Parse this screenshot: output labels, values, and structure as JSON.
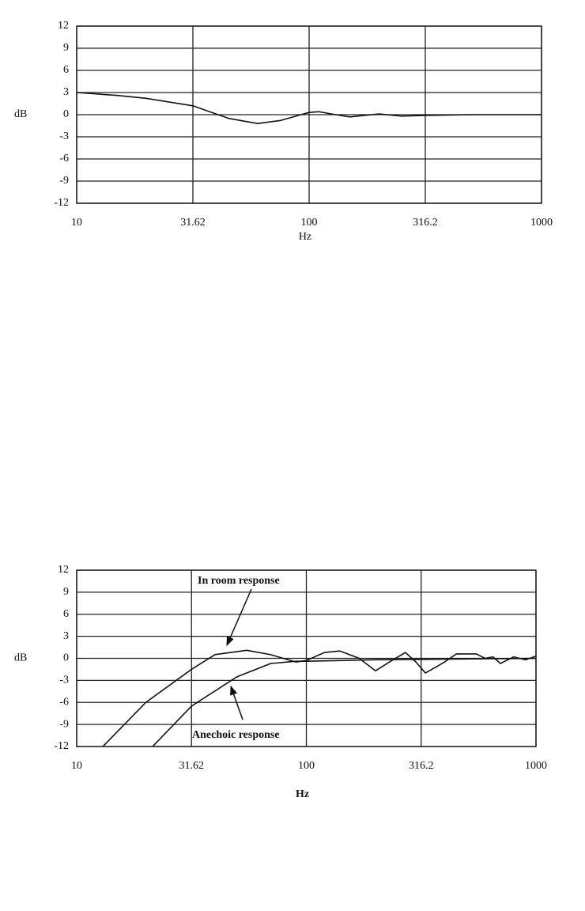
{
  "chart_data": [
    {
      "type": "line",
      "xscale": "log",
      "xlabel": "Hz",
      "ylabel": "dB",
      "xlim": [
        10,
        1000
      ],
      "xticks": [
        10,
        31.62,
        100,
        316.2,
        1000
      ],
      "ylim": [
        -12,
        12
      ],
      "yticks": [
        12,
        9,
        6,
        3,
        0,
        -3,
        -6,
        -9,
        -12
      ],
      "grid": true,
      "series": [
        {
          "color": "#111111",
          "x": [
            10,
            15,
            20,
            31.62,
            45,
            60,
            75,
            100,
            110,
            130,
            150,
            200,
            250,
            316.2,
            500,
            1000
          ],
          "values": [
            3,
            2.6,
            2.2,
            1.2,
            -0.5,
            -1.2,
            -0.8,
            0.3,
            0.4,
            0,
            -0.3,
            0.1,
            -0.2,
            -0.1,
            0,
            0
          ]
        }
      ]
    },
    {
      "type": "line",
      "xscale": "log",
      "xlabel": "Hz",
      "ylabel": "dB",
      "xlim": [
        10,
        1000
      ],
      "xticks": [
        10,
        31.62,
        100,
        316.2,
        1000
      ],
      "ylim": [
        -12,
        12
      ],
      "yticks": [
        12,
        9,
        6,
        3,
        0,
        -3,
        -6,
        -9,
        -12
      ],
      "grid": true,
      "series": [
        {
          "name": "In room response",
          "color": "#111111",
          "x": [
            13,
            20,
            31.62,
            40,
            55,
            70,
            90,
            100,
            120,
            140,
            170,
            200,
            230,
            270,
            300,
            330,
            400,
            450,
            550,
            600,
            650,
            700,
            800,
            900,
            1000
          ],
          "values": [
            -12,
            -6,
            -1.5,
            0.5,
            1.1,
            0.5,
            -0.5,
            -0.3,
            0.8,
            1,
            0,
            -1.7,
            -0.5,
            0.8,
            -0.5,
            -2,
            -0.5,
            0.6,
            0.6,
            0,
            0.2,
            -0.7,
            0.2,
            -0.2,
            0.3
          ]
        },
        {
          "name": "Anechoic response",
          "color": "#111111",
          "x": [
            21.4,
            31.62,
            50,
            70,
            90,
            100,
            200,
            1000
          ],
          "values": [
            -12,
            -6.5,
            -2.5,
            -0.7,
            -0.4,
            -0.4,
            -0.2,
            0
          ]
        }
      ]
    }
  ]
}
